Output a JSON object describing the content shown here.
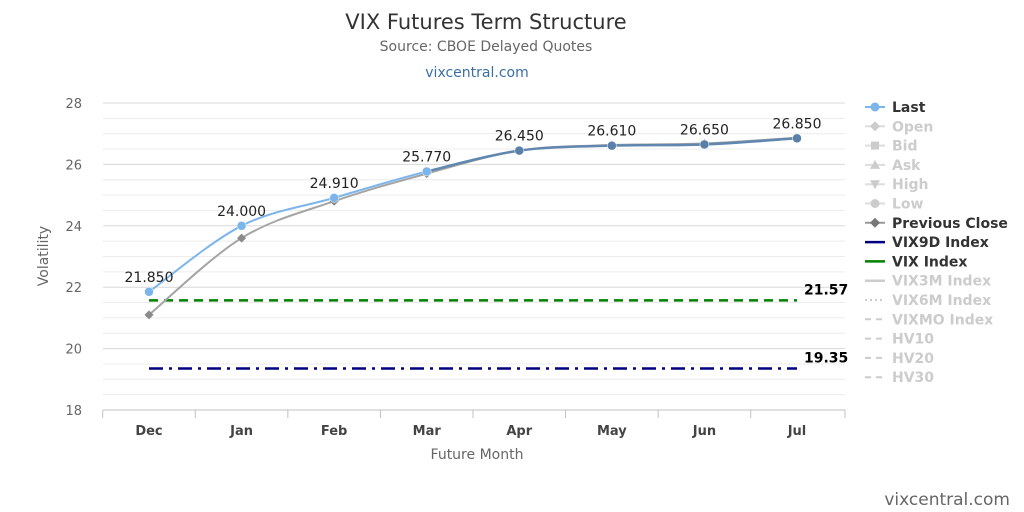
{
  "header": {
    "title": "VIX Futures Term Structure",
    "subtitle": "Source: CBOE Delayed Quotes",
    "link": "vixcentral.com"
  },
  "credit": "vixcentral.com",
  "chart_data": {
    "type": "line",
    "categories": [
      "Dec",
      "Jan",
      "Feb",
      "Mar",
      "Apr",
      "May",
      "Jun",
      "Jul"
    ],
    "xlabel": "Future Month",
    "ylabel": "Volatility",
    "ylim": [
      18,
      28
    ],
    "yticks": [
      18,
      20,
      22,
      24,
      26,
      28
    ],
    "grid": true,
    "legend_position": "right",
    "series": [
      {
        "name": "Last",
        "values": [
          21.85,
          24.0,
          24.91,
          25.77,
          26.45,
          26.61,
          26.65,
          26.85
        ],
        "labels": [
          "21.850",
          "24.000",
          "24.910",
          "25.770",
          "26.450",
          "26.610",
          "26.650",
          "26.850"
        ],
        "color": "#7cb5ec",
        "marker": "circle"
      },
      {
        "name": "Previous Close",
        "values": [
          21.1,
          23.6,
          24.8,
          25.7,
          26.45,
          26.63,
          26.68,
          26.87
        ],
        "color": "#a5a5a5",
        "marker": "diamond"
      },
      {
        "name": "VIX9D Index",
        "reference": 19.35,
        "label": "19.35",
        "color": "#000080",
        "dash": "dashdot"
      },
      {
        "name": "VIX Index",
        "reference": 21.57,
        "label": "21.57",
        "color": "#008000",
        "dash": "dash"
      }
    ],
    "legend": [
      {
        "name": "Last",
        "active": true,
        "symbol": "circle",
        "color": "#7cb5ec"
      },
      {
        "name": "Open",
        "active": false,
        "symbol": "diamond"
      },
      {
        "name": "Bid",
        "active": false,
        "symbol": "square"
      },
      {
        "name": "Ask",
        "active": false,
        "symbol": "triangle"
      },
      {
        "name": "High",
        "active": false,
        "symbol": "triangle-down"
      },
      {
        "name": "Low",
        "active": false,
        "symbol": "circle"
      },
      {
        "name": "Previous Close",
        "active": true,
        "symbol": "diamond",
        "color": "#777777"
      },
      {
        "name": "VIX9D Index",
        "active": true,
        "symbol": "line",
        "color": "#000080"
      },
      {
        "name": "VIX Index",
        "active": true,
        "symbol": "line",
        "color": "#008000"
      },
      {
        "name": "VIX3M Index",
        "active": false,
        "symbol": "line"
      },
      {
        "name": "VIX6M Index",
        "active": false,
        "symbol": "dotted"
      },
      {
        "name": "VIXMO Index",
        "active": false,
        "symbol": "dashed"
      },
      {
        "name": "HV10",
        "active": false,
        "symbol": "dashed"
      },
      {
        "name": "HV20",
        "active": false,
        "symbol": "dashed"
      },
      {
        "name": "HV30",
        "active": false,
        "symbol": "dashed"
      }
    ]
  }
}
